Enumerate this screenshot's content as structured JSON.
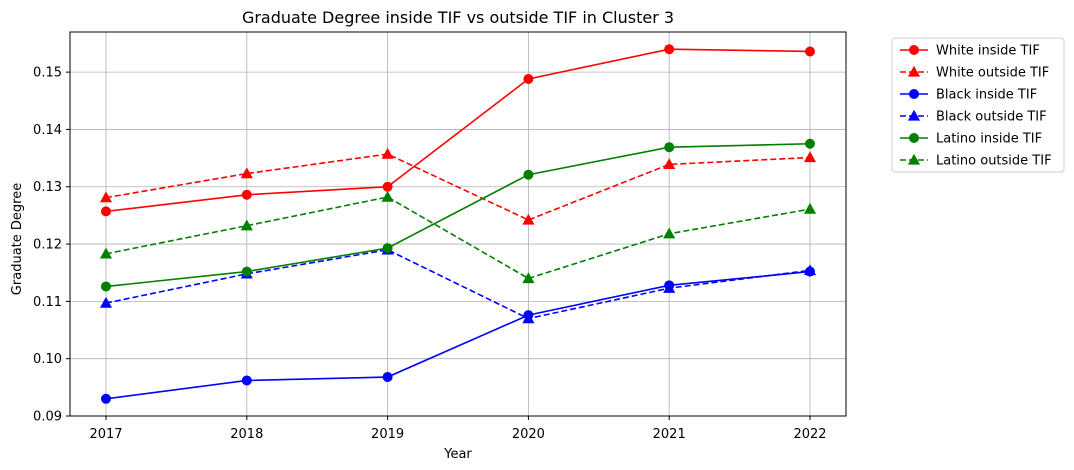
{
  "chart_data": {
    "type": "line",
    "title": "Graduate Degree inside TIF vs outside TIF in Cluster 3",
    "xlabel": "Year",
    "ylabel": "Graduate Degree",
    "categories": [
      "2017",
      "2018",
      "2019",
      "2020",
      "2021",
      "2022"
    ],
    "ylim": [
      0.09,
      0.157
    ],
    "yticks": [
      "0.09",
      "0.10",
      "0.11",
      "0.12",
      "0.13",
      "0.14",
      "0.15"
    ],
    "grid": true,
    "legend_position": "outside-right",
    "series": [
      {
        "name": "White inside TIF",
        "color": "#ff0000",
        "style": "solid",
        "marker": "circle",
        "values": [
          0.1257,
          0.1286,
          0.13,
          0.1488,
          0.154,
          0.1536
        ]
      },
      {
        "name": "White outside TIF",
        "color": "#ff0000",
        "style": "dashed",
        "marker": "triangle",
        "values": [
          0.1281,
          0.1323,
          0.1357,
          0.1242,
          0.1339,
          0.1351
        ]
      },
      {
        "name": "Black inside TIF",
        "color": "#0000ff",
        "style": "solid",
        "marker": "circle",
        "values": [
          0.093,
          0.0962,
          0.0968,
          0.1076,
          0.1128,
          0.1152
        ]
      },
      {
        "name": "Black outside TIF",
        "color": "#0000ff",
        "style": "dashed",
        "marker": "triangle",
        "values": [
          0.1097,
          0.1148,
          0.119,
          0.107,
          0.1123,
          0.1154
        ]
      },
      {
        "name": "Latino inside TIF",
        "color": "#008000",
        "style": "solid",
        "marker": "circle",
        "values": [
          0.1126,
          0.1152,
          0.1193,
          0.1321,
          0.1369,
          0.1375
        ]
      },
      {
        "name": "Latino outside TIF",
        "color": "#008000",
        "style": "dashed",
        "marker": "triangle",
        "values": [
          0.1183,
          0.1232,
          0.1282,
          0.114,
          0.1218,
          0.1261
        ]
      }
    ]
  }
}
